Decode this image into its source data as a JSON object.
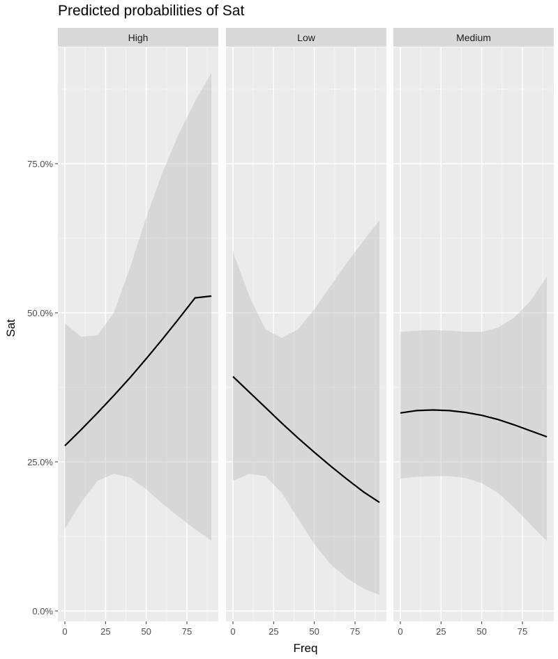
{
  "chart_data": {
    "type": "line",
    "title": "Predicted probabilities of Sat",
    "xlabel": "Freq",
    "ylabel": "Sat",
    "xlim": [
      0,
      90
    ],
    "ylim": [
      0,
      0.92
    ],
    "x_ticks": [
      0,
      25,
      50,
      75
    ],
    "x_tick_labels": [
      "0",
      "25",
      "50",
      "75"
    ],
    "y_ticks": [
      0,
      0.25,
      0.5,
      0.75
    ],
    "y_tick_labels": [
      "0.0%",
      "25.0%",
      "50.0%",
      "75.0%"
    ],
    "grid": true,
    "facets": [
      {
        "label": "High",
        "x": [
          0,
          10,
          20,
          30,
          40,
          50,
          60,
          70,
          80,
          90
        ],
        "y": [
          0.277,
          0.304,
          0.332,
          0.361,
          0.391,
          0.423,
          0.456,
          0.49,
          0.525,
          0.528
        ],
        "ci_lower": [
          0.138,
          0.182,
          0.218,
          0.23,
          0.224,
          0.204,
          0.18,
          0.158,
          0.137,
          0.118
        ],
        "ci_upper": [
          0.482,
          0.46,
          0.462,
          0.5,
          0.575,
          0.66,
          0.735,
          0.8,
          0.855,
          0.902
        ]
      },
      {
        "label": "Low",
        "x": [
          0,
          10,
          20,
          30,
          40,
          50,
          60,
          70,
          80,
          90
        ],
        "y": [
          0.393,
          0.367,
          0.341,
          0.315,
          0.29,
          0.266,
          0.243,
          0.221,
          0.2,
          0.182
        ],
        "ci_lower": [
          0.218,
          0.23,
          0.226,
          0.198,
          0.155,
          0.112,
          0.078,
          0.055,
          0.038,
          0.027
        ],
        "ci_upper": [
          0.602,
          0.528,
          0.472,
          0.458,
          0.472,
          0.506,
          0.545,
          0.584,
          0.62,
          0.655
        ]
      },
      {
        "label": "Medium",
        "x": [
          0,
          10,
          20,
          30,
          40,
          50,
          60,
          70,
          80,
          90
        ],
        "y": [
          0.332,
          0.336,
          0.337,
          0.336,
          0.333,
          0.328,
          0.321,
          0.312,
          0.302,
          0.292
        ],
        "ci_lower": [
          0.222,
          0.225,
          0.226,
          0.226,
          0.223,
          0.214,
          0.198,
          0.173,
          0.145,
          0.117
        ],
        "ci_upper": [
          0.468,
          0.47,
          0.471,
          0.47,
          0.468,
          0.468,
          0.475,
          0.492,
          0.52,
          0.56
        ]
      }
    ],
    "colors": {
      "panel_bg": "#ebebeb",
      "strip_bg": "#d9d9d9",
      "grid_major": "#ffffff",
      "ribbon": "#bfbfbf",
      "line": "#000000"
    }
  }
}
